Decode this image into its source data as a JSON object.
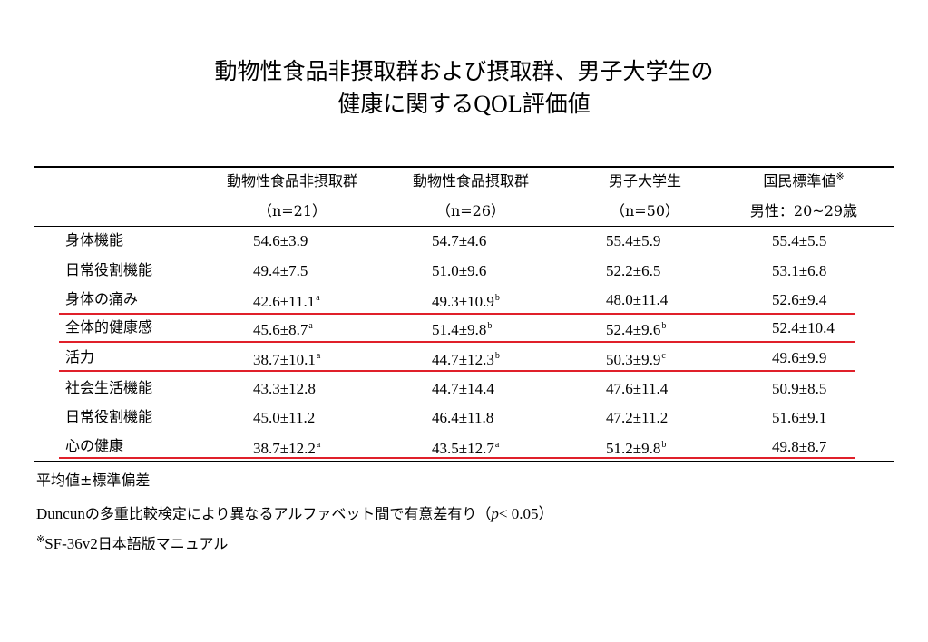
{
  "title": {
    "line1": "動物性食品非摂取群および摂取群、男子大学生の",
    "line2_prefix": "健康に関する",
    "line2_latin": "QOL",
    "line2_suffix": "評価値"
  },
  "table": {
    "columns": [
      {
        "label": "動物性食品非摂取群",
        "sub": "（n=21）"
      },
      {
        "label": "動物性食品摂取群",
        "sub": "（n=26）"
      },
      {
        "label": "男子大学生",
        "sub": "（n=50）"
      },
      {
        "label": "国民標準値",
        "label_mark": "※",
        "sub": "男性：20~29歳"
      }
    ],
    "rows": [
      {
        "label": "身体機能",
        "cells": [
          {
            "v": "54.6±3.9",
            "s": ""
          },
          {
            "v": "54.7±4.6",
            "s": ""
          },
          {
            "v": "55.4±5.9",
            "s": ""
          },
          {
            "v": "55.4±5.5",
            "s": ""
          }
        ]
      },
      {
        "label": "日常役割機能",
        "cells": [
          {
            "v": "49.4±7.5",
            "s": ""
          },
          {
            "v": "51.0±9.6",
            "s": ""
          },
          {
            "v": "52.2±6.5",
            "s": ""
          },
          {
            "v": "53.1±6.8",
            "s": ""
          }
        ]
      },
      {
        "label": "身体の痛み",
        "cells": [
          {
            "v": "42.6±11.1",
            "s": "a"
          },
          {
            "v": "49.3±10.9",
            "s": "b"
          },
          {
            "v": "48.0±11.4",
            "s": ""
          },
          {
            "v": "52.6±9.4",
            "s": ""
          }
        ]
      },
      {
        "label": "全体的健康感",
        "cells": [
          {
            "v": "45.6±8.7",
            "s": "a"
          },
          {
            "v": "51.4±9.8",
            "s": "b"
          },
          {
            "v": "52.4±9.6",
            "s": "b"
          },
          {
            "v": "52.4±10.4",
            "s": ""
          }
        ]
      },
      {
        "label": "活力",
        "cells": [
          {
            "v": "38.7±10.1",
            "s": "a"
          },
          {
            "v": "44.7±12.3",
            "s": "b"
          },
          {
            "v": "50.3±9.9",
            "s": "c"
          },
          {
            "v": "49.6±9.9",
            "s": ""
          }
        ]
      },
      {
        "label": "社会生活機能",
        "cells": [
          {
            "v": "43.3±12.8",
            "s": ""
          },
          {
            "v": "44.7±14.4",
            "s": ""
          },
          {
            "v": "47.6±11.4",
            "s": ""
          },
          {
            "v": "50.9±8.5",
            "s": ""
          }
        ]
      },
      {
        "label": "日常役割機能",
        "cells": [
          {
            "v": "45.0±11.2",
            "s": ""
          },
          {
            "v": "46.4±11.8",
            "s": ""
          },
          {
            "v": "47.2±11.2",
            "s": ""
          },
          {
            "v": "51.6±9.1",
            "s": ""
          }
        ]
      },
      {
        "label": "心の健康",
        "cells": [
          {
            "v": "38.7±12.2",
            "s": "a"
          },
          {
            "v": "43.5±12.7",
            "s": "a"
          },
          {
            "v": "51.2±9.8",
            "s": "b"
          },
          {
            "v": "49.8±8.7",
            "s": ""
          }
        ]
      }
    ]
  },
  "highlight_color": "#e0202a",
  "notes": {
    "n1": "平均値±標準偏差",
    "n2_prefix": "Duncun",
    "n2_text": "の多重比較検定により異なるアルファベット間で有意差有り（",
    "n2_p": "p",
    "n2_tail": "< 0.05）",
    "n3_mark": "※",
    "n3_latin": "SF-36v2",
    "n3_text": "日本語版マニュアル"
  }
}
